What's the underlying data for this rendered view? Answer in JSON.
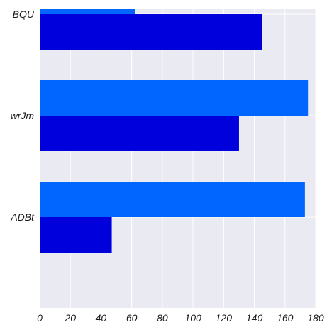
{
  "chart_data": {
    "type": "bar",
    "orientation": "horizontal",
    "categories": [
      "BQU",
      "wrJm",
      "ADBt"
    ],
    "series": [
      {
        "values": [
          62,
          175,
          173
        ],
        "color": "#0066ff"
      },
      {
        "values": [
          145,
          130,
          47
        ],
        "color": "#0000dd"
      }
    ],
    "title": "",
    "xlabel": "",
    "ylabel": "",
    "xlim": [
      0,
      180
    ],
    "xticks": [
      0,
      20,
      40,
      60,
      80,
      100,
      120,
      140,
      160,
      180
    ],
    "grid": true,
    "background": "#eaeaf2",
    "grid_color": "#ffffff",
    "legend": "none"
  }
}
